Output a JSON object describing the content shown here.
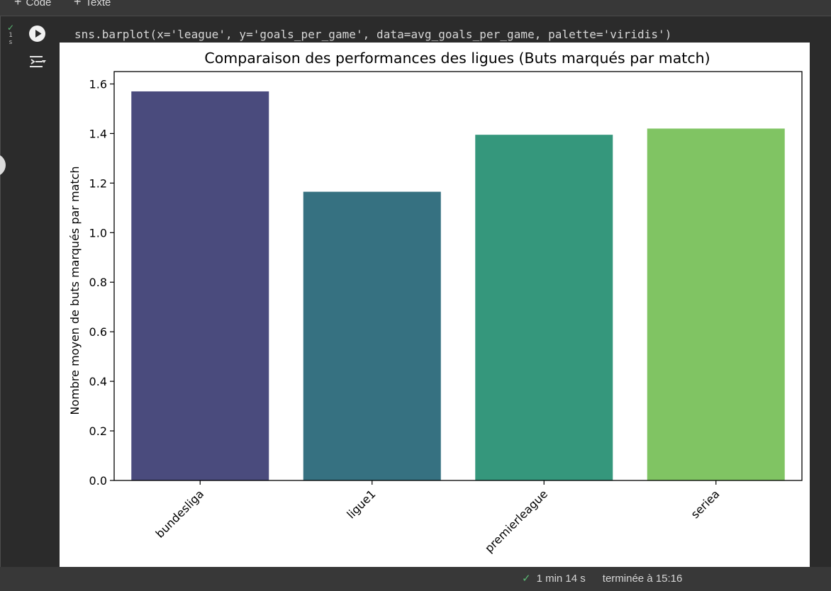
{
  "toolbar": {
    "add_code_label": "Code",
    "add_text_label": "Texte"
  },
  "cell": {
    "duration": "1 s",
    "code": "sns.barplot(x='league', y='goals_per_game', data=avg_goals_per_game, palette='viridis')"
  },
  "footer": {
    "elapsed": "1 min 14 s",
    "finished": "terminée à 15:16"
  },
  "colors": {
    "success": "#5bb974"
  },
  "icons": {
    "status": "check-icon",
    "run": "play-icon",
    "output": "output-menu-icon"
  },
  "chart_data": {
    "type": "bar",
    "title": "Comparaison des performances des ligues (Buts marqués par match)",
    "xlabel": "",
    "ylabel": "Nombre moyen de buts marqués par match",
    "categories": [
      "bundesliga",
      "ligue1",
      "premierleague",
      "seriea"
    ],
    "values": [
      1.57,
      1.165,
      1.395,
      1.42
    ],
    "colors": [
      "#4a4b7d",
      "#367181",
      "#35977c",
      "#80c463"
    ],
    "ylim": [
      0,
      1.65
    ],
    "yticks": [
      0.0,
      0.2,
      0.4,
      0.6,
      0.8,
      1.0,
      1.2,
      1.4,
      1.6
    ],
    "ytick_labels": [
      "0.0",
      "0.2",
      "0.4",
      "0.6",
      "0.8",
      "1.0",
      "1.2",
      "1.4",
      "1.6"
    ],
    "xtick_rotation": 45,
    "grid": false,
    "legend": "none"
  }
}
